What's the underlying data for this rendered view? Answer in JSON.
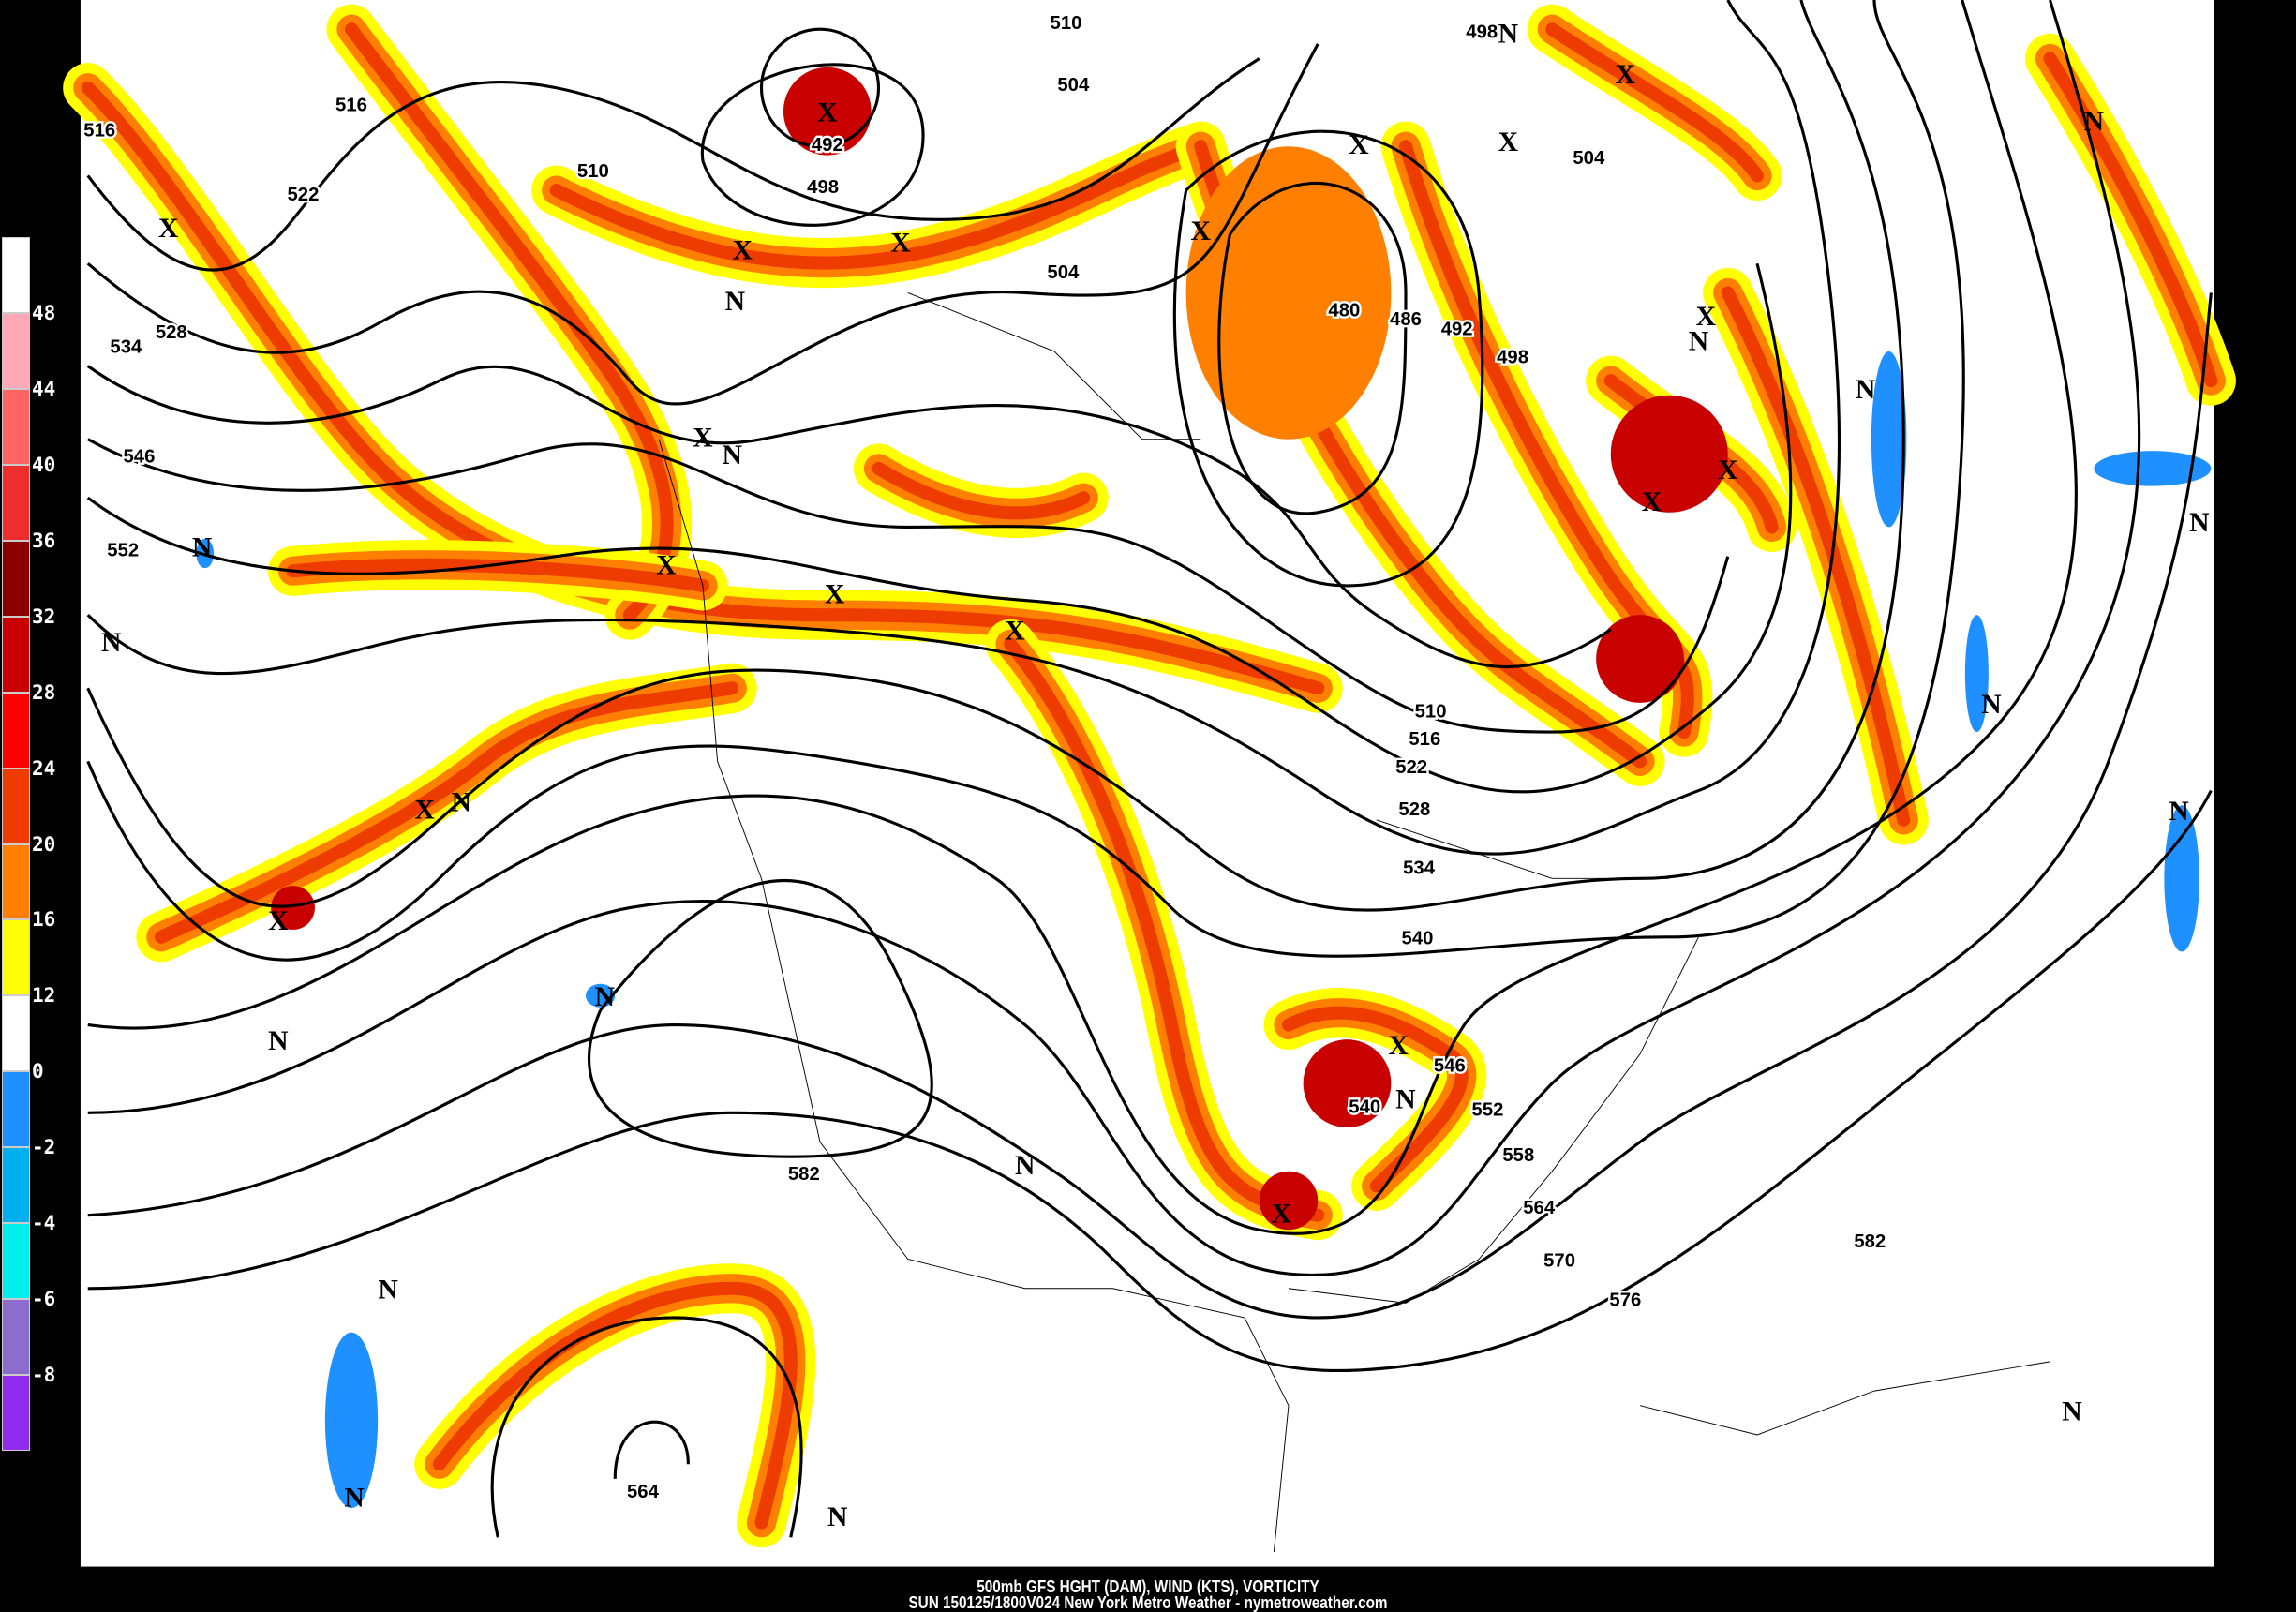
{
  "title": {
    "line1": "500mb GFS HGHT (DAM), WIND (KTS), VORTICITY",
    "line2": "SUN 150125/1800V024 New York Metro Weather - nymetroweather.com"
  },
  "colorbar": {
    "labels": [
      "48",
      "44",
      "40",
      "36",
      "32",
      "28",
      "24",
      "20",
      "16",
      "12",
      "0",
      "-2",
      "-4",
      "-6",
      "-8"
    ],
    "colors": [
      "#ffffff",
      "#ffa8b8",
      "#ff6464",
      "#ee2d2d",
      "#8b0000",
      "#c80000",
      "#ff0000",
      "#ee3c00",
      "#ff7f00",
      "#ffff00",
      "#ffffff",
      "#1e90ff",
      "#00b0ee",
      "#00eeee",
      "#8c6ccc",
      "#912cee"
    ]
  },
  "contour_labels": [
    "510",
    "498",
    "504",
    "504",
    "516",
    "516",
    "492",
    "498",
    "510",
    "522",
    "504",
    "480",
    "486",
    "492",
    "498",
    "528",
    "534",
    "546",
    "552",
    "510",
    "516",
    "522",
    "528",
    "534",
    "540",
    "546",
    "540",
    "552",
    "558",
    "564",
    "570",
    "576",
    "582",
    "582",
    "564"
  ],
  "high_vorticity_marker": "X",
  "low_vorticity_marker": "N"
}
